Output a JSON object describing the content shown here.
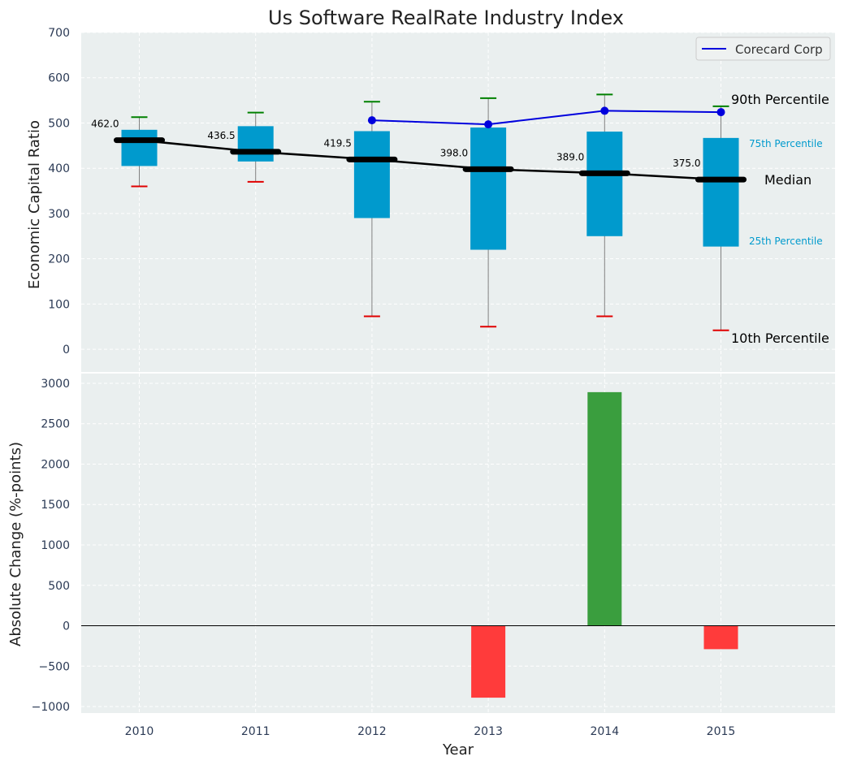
{
  "chart_data": [
    {
      "type": "box",
      "title": "Us Software RealRate Industry Index",
      "xlabel": "",
      "ylabel": "Economic Capital Ratio",
      "ylim": [
        -50,
        700
      ],
      "yticks": [
        0,
        100,
        200,
        300,
        400,
        500,
        600,
        700
      ],
      "categories": [
        "2010",
        "2011",
        "2012",
        "2013",
        "2014",
        "2015"
      ],
      "p10": [
        360,
        370,
        73,
        50,
        73,
        42
      ],
      "p25": [
        405,
        415,
        290,
        220,
        250,
        227
      ],
      "median": [
        462.0,
        436.5,
        419.5,
        398.0,
        389.0,
        375.0
      ],
      "median_labels": [
        "462.0",
        "436.5",
        "419.5",
        "398.0",
        "389.0",
        "375.0"
      ],
      "p75": [
        485,
        493,
        482,
        490,
        481,
        467
      ],
      "p90": [
        513,
        523,
        547,
        555,
        563,
        537
      ],
      "company_series": {
        "name": "Corecard Corp",
        "categories": [
          "2012",
          "2013",
          "2014",
          "2015"
        ],
        "values": [
          506,
          497,
          527,
          524
        ]
      },
      "annotations": {
        "p90": "90th Percentile",
        "p75": "75th Percentile",
        "median": "Median",
        "p25": "25th Percentile",
        "p10": "10th Percentile"
      },
      "colors": {
        "box": "#009ACD",
        "median_line": "#000000",
        "company": "#0000DD",
        "p90_cap": "#008000",
        "p10_cap": "#E00000",
        "whisker": "#808080",
        "background": "#EAEFEF"
      }
    },
    {
      "type": "bar",
      "xlabel": "Year",
      "ylabel": "Absolute Change (%-points)",
      "ylim": [
        -1080,
        3120
      ],
      "yticks": [
        -1000,
        -500,
        0,
        500,
        1000,
        1500,
        2000,
        2500,
        3000
      ],
      "ytick_labels": [
        "−1000",
        "−500",
        "0",
        "500",
        "1000",
        "1500",
        "2000",
        "2500",
        "3000"
      ],
      "categories": [
        "2010",
        "2011",
        "2012",
        "2013",
        "2014",
        "2015"
      ],
      "values": [
        0,
        0,
        0,
        -890,
        2890,
        -290
      ],
      "colors": {
        "positive": "#3A9E3E",
        "negative": "#FF3B3B",
        "zero_line": "#000000"
      }
    }
  ]
}
